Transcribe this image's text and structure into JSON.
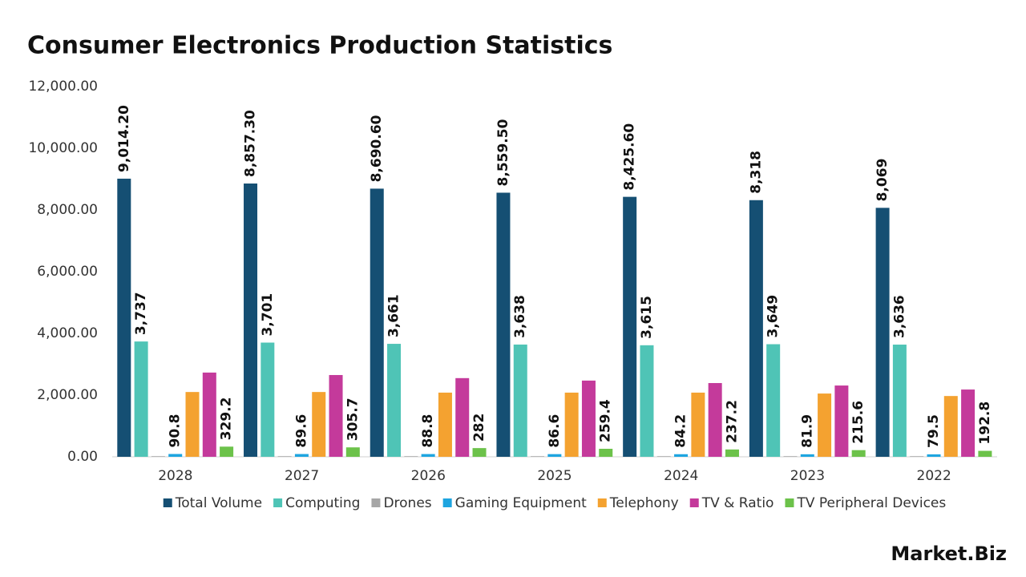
{
  "chart_data": {
    "type": "bar",
    "title": "Consumer Electronics Production Statistics",
    "logo": "Market.Biz",
    "categories": [
      "2028",
      "2027",
      "2026",
      "2025",
      "2024",
      "2023",
      "2022"
    ],
    "ylim": [
      0,
      12000
    ],
    "yticks": [
      {
        "value": 0,
        "label": "0.00"
      },
      {
        "value": 2000,
        "label": "2,000.00"
      },
      {
        "value": 4000,
        "label": "4,000.00"
      },
      {
        "value": 6000,
        "label": "6,000.00"
      },
      {
        "value": 8000,
        "label": "8,000.00"
      },
      {
        "value": 10000,
        "label": "10,000.00"
      },
      {
        "value": 12000,
        "label": "12,000.00"
      }
    ],
    "grid": false,
    "legend": "bottom",
    "series": [
      {
        "name": "Total Volume",
        "color": "#154f73",
        "data_labels": true,
        "values": [
          9014.2,
          8857.3,
          8690.6,
          8559.5,
          8425.6,
          8318,
          8069
        ],
        "value_labels": [
          "9,014.20",
          "8,857.30",
          "8,690.60",
          "8,559.50",
          "8,425.60",
          "8,318",
          "8,069"
        ]
      },
      {
        "name": "Computing",
        "color": "#4fc4b6",
        "data_labels": true,
        "values": [
          3737,
          3701,
          3661,
          3638,
          3615,
          3649,
          3636
        ],
        "value_labels": [
          "3,737",
          "3,701",
          "3,661",
          "3,638",
          "3,615",
          "3,649",
          "3,636"
        ]
      },
      {
        "name": "Drones",
        "color": "#a6a6a6",
        "data_labels": false,
        "values": [
          20,
          20,
          20,
          20,
          20,
          20,
          20
        ]
      },
      {
        "name": "Gaming Equipment",
        "color": "#1ea5e0",
        "data_labels": true,
        "values": [
          90.8,
          89.6,
          88.8,
          86.6,
          84.2,
          81.9,
          79.5
        ]
      },
      {
        "name": "Telephony",
        "color": "#f4a230",
        "data_labels": false,
        "values": [
          2100,
          2100,
          2080,
          2080,
          2080,
          2050,
          1970
        ]
      },
      {
        "name": "TV & Ratio",
        "color": "#c43a9b",
        "data_labels": false,
        "values": [
          2730,
          2650,
          2550,
          2470,
          2390,
          2310,
          2180
        ]
      },
      {
        "name": "TV Peripheral Devices",
        "color": "#6cc24a",
        "data_labels": true,
        "values": [
          329.2,
          305.7,
          282,
          259.4,
          237.2,
          215.6,
          192.8
        ]
      }
    ]
  }
}
